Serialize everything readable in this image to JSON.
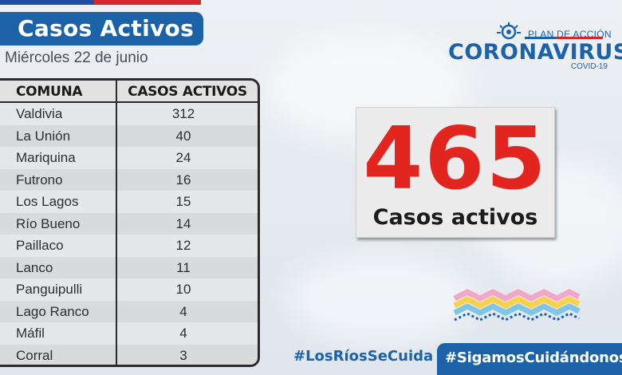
{
  "header": {
    "title": "Casos Activos",
    "date": "Miércoles 22 de junio"
  },
  "table": {
    "columns": [
      "COMUNA",
      "CASOS ACTIVOS"
    ],
    "rows": [
      {
        "comuna": "Valdivia",
        "casos": "312"
      },
      {
        "comuna": "La Unión",
        "casos": "40"
      },
      {
        "comuna": "Mariquina",
        "casos": "24"
      },
      {
        "comuna": "Futrono",
        "casos": "16"
      },
      {
        "comuna": "Los Lagos",
        "casos": "15"
      },
      {
        "comuna": "Río Bueno",
        "casos": "14"
      },
      {
        "comuna": "Paillaco",
        "casos": "12"
      },
      {
        "comuna": "Lanco",
        "casos": "11"
      },
      {
        "comuna": "Panguipulli",
        "casos": "10"
      },
      {
        "comuna": "Lago Ranco",
        "casos": "4"
      },
      {
        "comuna": "Máfil",
        "casos": "4"
      },
      {
        "comuna": "Corral",
        "casos": "3"
      }
    ]
  },
  "logo": {
    "plan": "PLAN DE ACCIÓN",
    "name": "CORONAVIRUS",
    "sub": "COVID-19"
  },
  "summary": {
    "total": "465",
    "label": "Casos activos"
  },
  "hashtags": {
    "primary": "#LosRíosSeCuida",
    "secondary": "#SigamosCuidándonos"
  },
  "colors": {
    "brand_blue": "#1b62a8",
    "accent_red": "#e3251f",
    "flag_blue": "#1d4f9c",
    "flag_red": "#d3272b"
  }
}
